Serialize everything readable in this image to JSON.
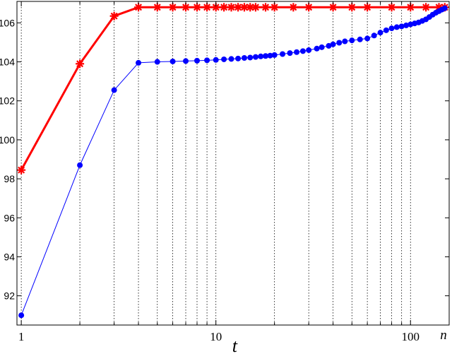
{
  "chart_data": {
    "type": "line",
    "xscale": "log",
    "xlim": [
      0.95,
      158
    ],
    "ylim": [
      90.5,
      107.1
    ],
    "xlabel": "t",
    "x_end_label": "n",
    "x_ticks": [
      {
        "value": 1,
        "label": "1"
      },
      {
        "value": 10,
        "label": "10"
      },
      {
        "value": 100,
        "label": "100"
      }
    ],
    "y_ticks": [
      {
        "value": 92,
        "label": "92"
      },
      {
        "value": 94,
        "label": "94"
      },
      {
        "value": 96,
        "label": "96"
      },
      {
        "value": 98,
        "label": "98"
      },
      {
        "value": 100,
        "label": "100"
      },
      {
        "value": 102,
        "label": "102"
      },
      {
        "value": 104,
        "label": "104"
      },
      {
        "value": 106,
        "label": "106"
      }
    ],
    "grid": "x-dotted",
    "series": [
      {
        "color": "#ff0000",
        "marker": "asterisk",
        "line_width": 3,
        "points": [
          [
            1,
            98.45
          ],
          [
            2,
            103.9
          ],
          [
            3,
            106.35
          ],
          [
            4,
            106.8
          ],
          [
            5,
            106.8
          ],
          [
            6,
            106.8
          ],
          [
            7,
            106.8
          ],
          [
            8,
            106.8
          ],
          [
            9,
            106.8
          ],
          [
            10,
            106.8
          ],
          [
            11,
            106.8
          ],
          [
            12,
            106.8
          ],
          [
            13,
            106.8
          ],
          [
            14,
            106.8
          ],
          [
            15,
            106.8
          ],
          [
            16,
            106.8
          ],
          [
            18,
            106.8
          ],
          [
            20,
            106.8
          ],
          [
            25,
            106.8
          ],
          [
            30,
            106.8
          ],
          [
            40,
            106.8
          ],
          [
            50,
            106.8
          ],
          [
            60,
            106.8
          ],
          [
            80,
            106.8
          ],
          [
            100,
            106.8
          ],
          [
            120,
            106.8
          ],
          [
            140,
            106.8
          ],
          [
            150,
            106.8
          ]
        ]
      },
      {
        "color": "#0000ff",
        "marker": "dot",
        "line_width": 1,
        "points": [
          [
            1,
            91.0
          ],
          [
            2,
            98.7
          ],
          [
            3,
            102.55
          ],
          [
            4,
            103.95
          ],
          [
            5,
            104.0
          ],
          [
            6,
            104.02
          ],
          [
            7,
            104.04
          ],
          [
            8,
            104.06
          ],
          [
            9,
            104.08
          ],
          [
            10,
            104.1
          ],
          [
            11,
            104.13
          ],
          [
            12,
            104.15
          ],
          [
            13,
            104.17
          ],
          [
            14,
            104.2
          ],
          [
            15,
            104.22
          ],
          [
            16,
            104.25
          ],
          [
            17,
            104.28
          ],
          [
            18,
            104.3
          ],
          [
            19,
            104.32
          ],
          [
            20,
            104.35
          ],
          [
            22,
            104.4
          ],
          [
            24,
            104.45
          ],
          [
            26,
            104.5
          ],
          [
            28,
            104.55
          ],
          [
            30,
            104.6
          ],
          [
            33,
            104.68
          ],
          [
            35,
            104.75
          ],
          [
            38,
            104.82
          ],
          [
            40,
            104.9
          ],
          [
            43,
            104.98
          ],
          [
            46,
            105.05
          ],
          [
            50,
            105.1
          ],
          [
            55,
            105.15
          ],
          [
            60,
            105.2
          ],
          [
            65,
            105.35
          ],
          [
            70,
            105.5
          ],
          [
            75,
            105.62
          ],
          [
            80,
            105.72
          ],
          [
            85,
            105.78
          ],
          [
            90,
            105.82
          ],
          [
            95,
            105.87
          ],
          [
            100,
            105.92
          ],
          [
            105,
            105.97
          ],
          [
            110,
            106.02
          ],
          [
            115,
            106.1
          ],
          [
            120,
            106.18
          ],
          [
            125,
            106.3
          ],
          [
            130,
            106.42
          ],
          [
            135,
            106.52
          ],
          [
            140,
            106.6
          ],
          [
            145,
            106.68
          ],
          [
            150,
            106.75
          ]
        ]
      }
    ]
  }
}
